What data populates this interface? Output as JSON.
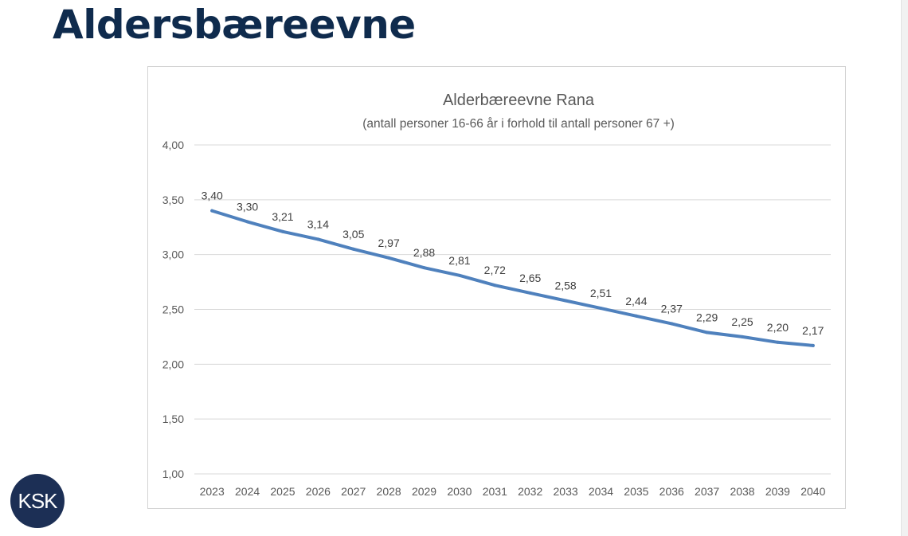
{
  "page": {
    "title": "Aldersbæreevne"
  },
  "logo": {
    "text": "KSK",
    "color": "#1c2f55"
  },
  "colors": {
    "title": "#0f2b4d",
    "line": "#4f81bd",
    "grid": "#d9d9d9",
    "text": "#595959"
  },
  "chart_data": {
    "type": "line",
    "title": "Alderbæreevne Rana",
    "subtitle": "(antall personer 16-66 år i forhold til antall personer 67 +)",
    "xlabel": "",
    "ylabel": "",
    "categories": [
      "2023",
      "2024",
      "2025",
      "2026",
      "2027",
      "2028",
      "2029",
      "2030",
      "2031",
      "2032",
      "2033",
      "2034",
      "2035",
      "2036",
      "2037",
      "2038",
      "2039",
      "2040"
    ],
    "series": [
      {
        "values": [
          3.4,
          3.3,
          3.21,
          3.14,
          3.05,
          2.97,
          2.88,
          2.81,
          2.72,
          2.65,
          2.58,
          2.51,
          2.44,
          2.37,
          2.29,
          2.25,
          2.2,
          2.17
        ]
      }
    ],
    "data_labels": [
      "3,40",
      "3,30",
      "3,21",
      "3,14",
      "3,05",
      "2,97",
      "2,88",
      "2,81",
      "2,72",
      "2,65",
      "2,58",
      "2,51",
      "2,44",
      "2,37",
      "2,29",
      "2,25",
      "2,20",
      "2,17"
    ],
    "ylim": [
      1.0,
      4.0
    ],
    "yticks": [
      1.0,
      1.5,
      2.0,
      2.5,
      3.0,
      3.5,
      4.0
    ],
    "ytick_labels": [
      "1,00",
      "1,50",
      "2,00",
      "2,50",
      "3,00",
      "3,50",
      "4,00"
    ],
    "grid": true,
    "legend": "none"
  }
}
